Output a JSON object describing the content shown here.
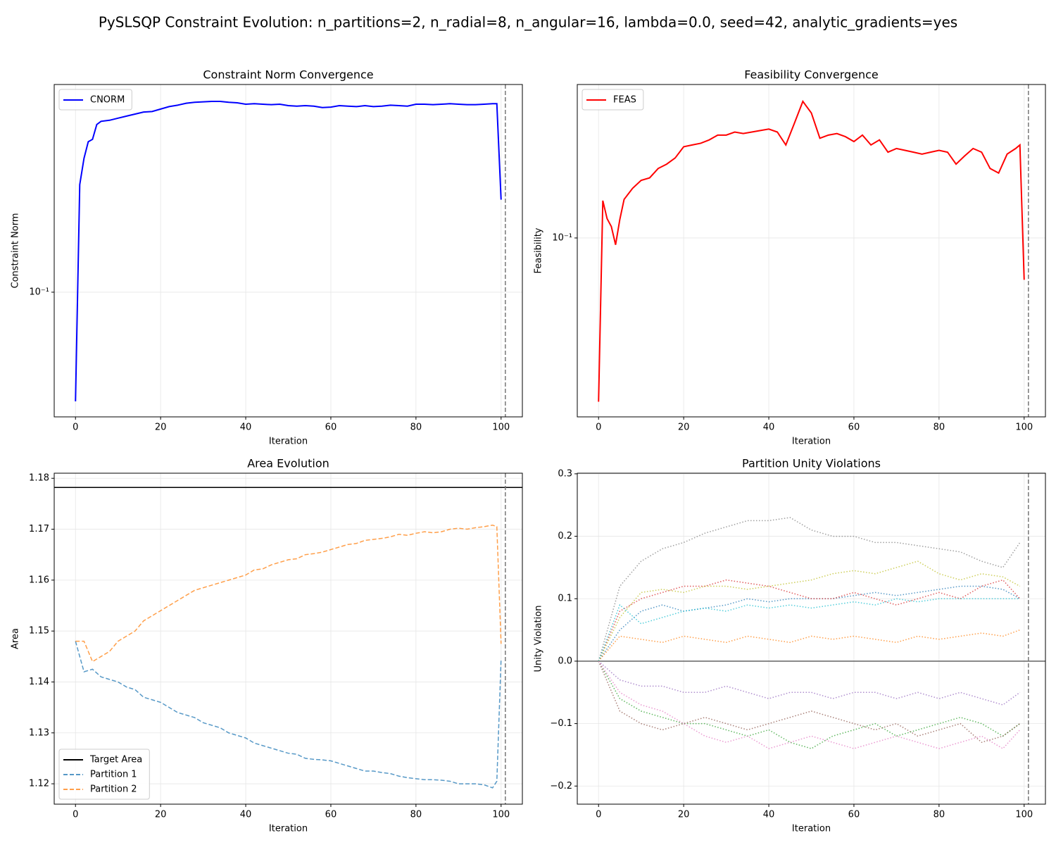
{
  "title": "PySLSQP Constraint Evolution: n_partitions=2, n_radial=8, n_angular=16, lambda=0.0, seed=42, analytic_gradients=yes",
  "chart_data": [
    {
      "type": "line",
      "title": "Constraint Norm Convergence",
      "xlabel": "Iteration",
      "ylabel": "Constraint Norm",
      "x": [
        0,
        1,
        2,
        3,
        4,
        5,
        6,
        8,
        10,
        12,
        14,
        16,
        18,
        20,
        22,
        24,
        26,
        28,
        30,
        32,
        34,
        36,
        38,
        40,
        42,
        44,
        46,
        48,
        50,
        52,
        54,
        56,
        58,
        60,
        62,
        64,
        66,
        68,
        70,
        72,
        74,
        76,
        78,
        80,
        82,
        84,
        86,
        88,
        90,
        92,
        94,
        96,
        98,
        99,
        100
      ],
      "series": [
        {
          "name": "CNORM",
          "color": "#0000ff",
          "linestyle": "solid",
          "values": [
            0.05,
            0.198,
            0.234,
            0.26,
            0.264,
            0.29,
            0.296,
            0.298,
            0.302,
            0.306,
            0.31,
            0.314,
            0.315,
            0.32,
            0.325,
            0.328,
            0.332,
            0.334,
            0.335,
            0.336,
            0.336,
            0.334,
            0.333,
            0.33,
            0.331,
            0.33,
            0.329,
            0.33,
            0.327,
            0.326,
            0.327,
            0.326,
            0.323,
            0.324,
            0.327,
            0.326,
            0.325,
            0.327,
            0.325,
            0.326,
            0.328,
            0.327,
            0.326,
            0.33,
            0.33,
            0.329,
            0.33,
            0.331,
            0.33,
            0.329,
            0.329,
            0.33,
            0.331,
            0.331,
            0.18
          ]
        }
      ],
      "xlim": [
        -5,
        105
      ],
      "xticks": [
        0,
        20,
        40,
        60,
        80,
        100
      ],
      "ylim": [
        0.0453,
        0.374
      ],
      "yticks": [
        {
          "value": 0.1,
          "label": "10⁻¹"
        }
      ],
      "log_y": true,
      "grid": true,
      "legend": "upper left",
      "vline": 101
    },
    {
      "type": "line",
      "title": "Feasibility Convergence",
      "xlabel": "Iteration",
      "ylabel": "Feasibility",
      "x": [
        0,
        1,
        2,
        3,
        4,
        5,
        6,
        8,
        10,
        12,
        14,
        16,
        18,
        20,
        22,
        24,
        26,
        28,
        30,
        32,
        34,
        36,
        38,
        40,
        42,
        44,
        46,
        48,
        50,
        52,
        54,
        56,
        58,
        60,
        62,
        64,
        66,
        68,
        70,
        72,
        74,
        76,
        78,
        80,
        82,
        84,
        86,
        88,
        90,
        92,
        94,
        96,
        98,
        99,
        100
      ],
      "series": [
        {
          "name": "FEAS",
          "color": "#ff0000",
          "linestyle": "solid",
          "values": [
            0.0174,
            0.149,
            0.123,
            0.113,
            0.093,
            0.122,
            0.151,
            0.17,
            0.185,
            0.19,
            0.21,
            0.22,
            0.235,
            0.265,
            0.27,
            0.275,
            0.285,
            0.3,
            0.3,
            0.31,
            0.305,
            0.31,
            0.315,
            0.32,
            0.31,
            0.27,
            0.34,
            0.43,
            0.38,
            0.29,
            0.3,
            0.305,
            0.295,
            0.28,
            0.3,
            0.27,
            0.285,
            0.25,
            0.26,
            0.255,
            0.25,
            0.245,
            0.25,
            0.255,
            0.25,
            0.22,
            0.24,
            0.26,
            0.25,
            0.21,
            0.2,
            0.245,
            0.26,
            0.27,
            0.064
          ]
        }
      ],
      "xlim": [
        -5,
        105
      ],
      "xticks": [
        0,
        20,
        40,
        60,
        80,
        100
      ],
      "ylim": [
        0.0148,
        0.515
      ],
      "yticks": [
        {
          "value": 0.1,
          "label": "10⁻¹"
        }
      ],
      "log_y": true,
      "grid": true,
      "legend": "upper left",
      "vline": 101
    },
    {
      "type": "line",
      "title": "Area Evolution",
      "xlabel": "Iteration",
      "ylabel": "Area",
      "x": [
        0,
        2,
        4,
        6,
        8,
        10,
        12,
        14,
        16,
        18,
        20,
        22,
        24,
        26,
        28,
        30,
        32,
        34,
        36,
        38,
        40,
        42,
        44,
        46,
        48,
        50,
        52,
        54,
        56,
        58,
        60,
        62,
        64,
        66,
        68,
        70,
        72,
        74,
        76,
        78,
        80,
        82,
        84,
        86,
        88,
        90,
        92,
        94,
        96,
        98,
        99,
        100
      ],
      "target": {
        "name": "Target Area",
        "value": 1.1782,
        "color": "#000000"
      },
      "series": [
        {
          "name": "Partition 1",
          "color": "#1f77b4",
          "linestyle": "dashed",
          "values": [
            1.148,
            1.142,
            1.1425,
            1.141,
            1.1405,
            1.14,
            1.139,
            1.1385,
            1.137,
            1.1365,
            1.136,
            1.135,
            1.134,
            1.1335,
            1.133,
            1.132,
            1.1315,
            1.131,
            1.13,
            1.1295,
            1.129,
            1.128,
            1.1275,
            1.127,
            1.1265,
            1.126,
            1.1258,
            1.125,
            1.1248,
            1.1247,
            1.1245,
            1.124,
            1.1235,
            1.123,
            1.1225,
            1.1225,
            1.1222,
            1.122,
            1.1215,
            1.1212,
            1.121,
            1.1208,
            1.1208,
            1.1207,
            1.1205,
            1.12,
            1.12,
            1.12,
            1.1198,
            1.1192,
            1.1205,
            1.1445
          ]
        },
        {
          "name": "Partition 2",
          "color": "#ff7f0e",
          "linestyle": "dashed",
          "values": [
            1.148,
            1.148,
            1.144,
            1.145,
            1.146,
            1.148,
            1.149,
            1.15,
            1.152,
            1.153,
            1.154,
            1.155,
            1.156,
            1.157,
            1.158,
            1.1585,
            1.159,
            1.1595,
            1.16,
            1.1605,
            1.161,
            1.162,
            1.1622,
            1.163,
            1.1635,
            1.164,
            1.1642,
            1.165,
            1.1652,
            1.1655,
            1.166,
            1.1665,
            1.167,
            1.1672,
            1.1678,
            1.168,
            1.1682,
            1.1685,
            1.169,
            1.1688,
            1.1692,
            1.1695,
            1.1693,
            1.1695,
            1.17,
            1.1702,
            1.17,
            1.1703,
            1.1705,
            1.1708,
            1.1705,
            1.1475
          ]
        }
      ],
      "xlim": [
        -5,
        105
      ],
      "xticks": [
        0,
        20,
        40,
        60,
        80,
        100
      ],
      "ylim": [
        1.116,
        1.181
      ],
      "yticks": [
        1.12,
        1.13,
        1.14,
        1.15,
        1.16,
        1.17,
        1.18
      ],
      "log_y": false,
      "grid": true,
      "legend": "lower left",
      "vline": 101
    },
    {
      "type": "line",
      "title": "Partition Unity Violations",
      "xlabel": "Iteration",
      "ylabel": "Unity Violation",
      "x": [
        0,
        5,
        10,
        15,
        20,
        25,
        30,
        35,
        40,
        45,
        50,
        55,
        60,
        65,
        70,
        75,
        80,
        85,
        90,
        95,
        99
      ],
      "series": [
        {
          "color": "#7f7f7f",
          "linestyle": "dotted",
          "values": [
            0,
            0.12,
            0.16,
            0.18,
            0.19,
            0.205,
            0.215,
            0.225,
            0.225,
            0.23,
            0.21,
            0.2,
            0.2,
            0.19,
            0.19,
            0.185,
            0.18,
            0.175,
            0.16,
            0.15,
            0.19
          ]
        },
        {
          "color": "#1f77b4",
          "linestyle": "dotted",
          "values": [
            0,
            0.05,
            0.08,
            0.09,
            0.08,
            0.085,
            0.09,
            0.1,
            0.095,
            0.1,
            0.1,
            0.1,
            0.105,
            0.11,
            0.105,
            0.11,
            0.115,
            0.12,
            0.12,
            0.115,
            0.1
          ]
        },
        {
          "color": "#ff7f0e",
          "linestyle": "dotted",
          "values": [
            0,
            0.04,
            0.035,
            0.03,
            0.04,
            0.035,
            0.03,
            0.04,
            0.035,
            0.03,
            0.04,
            0.035,
            0.04,
            0.035,
            0.03,
            0.04,
            0.035,
            0.04,
            0.045,
            0.04,
            0.05
          ]
        },
        {
          "color": "#2ca02c",
          "linestyle": "dotted",
          "values": [
            0,
            -0.06,
            -0.08,
            -0.09,
            -0.1,
            -0.1,
            -0.11,
            -0.12,
            -0.11,
            -0.13,
            -0.14,
            -0.12,
            -0.11,
            -0.1,
            -0.12,
            -0.11,
            -0.1,
            -0.09,
            -0.1,
            -0.12,
            -0.1
          ]
        },
        {
          "color": "#d62728",
          "linestyle": "dotted",
          "values": [
            0,
            0.08,
            0.1,
            0.11,
            0.12,
            0.12,
            0.13,
            0.125,
            0.12,
            0.11,
            0.1,
            0.1,
            0.11,
            0.1,
            0.09,
            0.1,
            0.11,
            0.1,
            0.12,
            0.13,
            0.1
          ]
        },
        {
          "color": "#9467bd",
          "linestyle": "dotted",
          "values": [
            0,
            -0.03,
            -0.04,
            -0.04,
            -0.05,
            -0.05,
            -0.04,
            -0.05,
            -0.06,
            -0.05,
            -0.05,
            -0.06,
            -0.05,
            -0.05,
            -0.06,
            -0.05,
            -0.06,
            -0.05,
            -0.06,
            -0.07,
            -0.05
          ]
        },
        {
          "color": "#8c564b",
          "linestyle": "dotted",
          "values": [
            0,
            -0.08,
            -0.1,
            -0.11,
            -0.1,
            -0.09,
            -0.1,
            -0.11,
            -0.1,
            -0.09,
            -0.08,
            -0.09,
            -0.1,
            -0.11,
            -0.1,
            -0.12,
            -0.11,
            -0.1,
            -0.13,
            -0.12,
            -0.1
          ]
        },
        {
          "color": "#e377c2",
          "linestyle": "dotted",
          "values": [
            0,
            -0.05,
            -0.07,
            -0.08,
            -0.1,
            -0.12,
            -0.13,
            -0.12,
            -0.14,
            -0.13,
            -0.12,
            -0.13,
            -0.14,
            -0.13,
            -0.12,
            -0.13,
            -0.14,
            -0.13,
            -0.12,
            -0.14,
            -0.11
          ]
        },
        {
          "color": "#bcbd22",
          "linestyle": "dotted",
          "values": [
            0,
            0.07,
            0.11,
            0.115,
            0.11,
            0.12,
            0.12,
            0.115,
            0.12,
            0.125,
            0.13,
            0.14,
            0.145,
            0.14,
            0.15,
            0.16,
            0.14,
            0.13,
            0.14,
            0.135,
            0.12
          ]
        },
        {
          "color": "#17becf",
          "linestyle": "dotted",
          "values": [
            0,
            0.09,
            0.06,
            0.07,
            0.08,
            0.085,
            0.08,
            0.09,
            0.085,
            0.09,
            0.085,
            0.09,
            0.095,
            0.09,
            0.1,
            0.095,
            0.1,
            0.1,
            0.1,
            0.1,
            0.1
          ]
        }
      ],
      "xlim": [
        -5,
        105
      ],
      "xticks": [
        0,
        20,
        40,
        60,
        80,
        100
      ],
      "ylim": [
        -0.229,
        0.301
      ],
      "yticks": [
        {
          "value": -0.2,
          "label": "−0.2"
        },
        {
          "value": -0.1,
          "label": "−0.1"
        },
        {
          "value": 0,
          "label": "0.0"
        },
        0.1,
        0.2,
        0.3
      ],
      "log_y": false,
      "grid": true,
      "hline": 0,
      "vline": 101
    }
  ]
}
